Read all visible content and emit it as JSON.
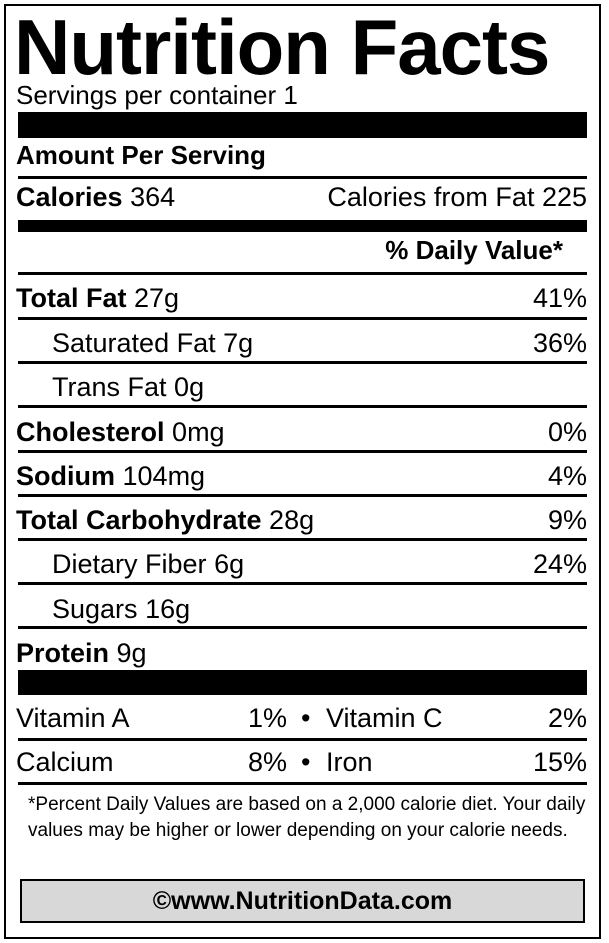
{
  "title": "Nutrition Facts",
  "servings": "Servings per container 1",
  "amount_per_serving": "Amount Per Serving",
  "calories": {
    "label": "Calories",
    "value": "364",
    "from_fat": "Calories from Fat 225"
  },
  "daily_value_header": "% Daily Value*",
  "nutrients": [
    {
      "name": "Total Fat",
      "amount": "27g",
      "dv": "41%"
    },
    {
      "name": "Saturated Fat",
      "amount": "7g",
      "dv": "36%"
    },
    {
      "name": "Trans Fat",
      "amount": "0g",
      "dv": ""
    },
    {
      "name": "Cholesterol",
      "amount": "0mg",
      "dv": "0%"
    },
    {
      "name": "Sodium",
      "amount": "104mg",
      "dv": "4%"
    },
    {
      "name": "Total Carbohydrate",
      "amount": "28g",
      "dv": "9%"
    },
    {
      "name": "Dietary Fiber",
      "amount": "6g",
      "dv": "24%"
    },
    {
      "name": "Sugars",
      "amount": "16g",
      "dv": ""
    },
    {
      "name": "Protein",
      "amount": "9g",
      "dv": ""
    }
  ],
  "vitamins": [
    {
      "left_name": "Vitamin A",
      "left_dv": "1%",
      "right_name": "Vitamin C",
      "right_dv": "2%"
    },
    {
      "left_name": "Calcium",
      "left_dv": "8%",
      "right_name": "Iron",
      "right_dv": "15%"
    }
  ],
  "bullet": "•",
  "footnote": "*Percent Daily Values are based on a 2,000 calorie diet. Your daily values may be higher or lower depending on your calorie needs.",
  "footer": "©www.NutritionData.com"
}
